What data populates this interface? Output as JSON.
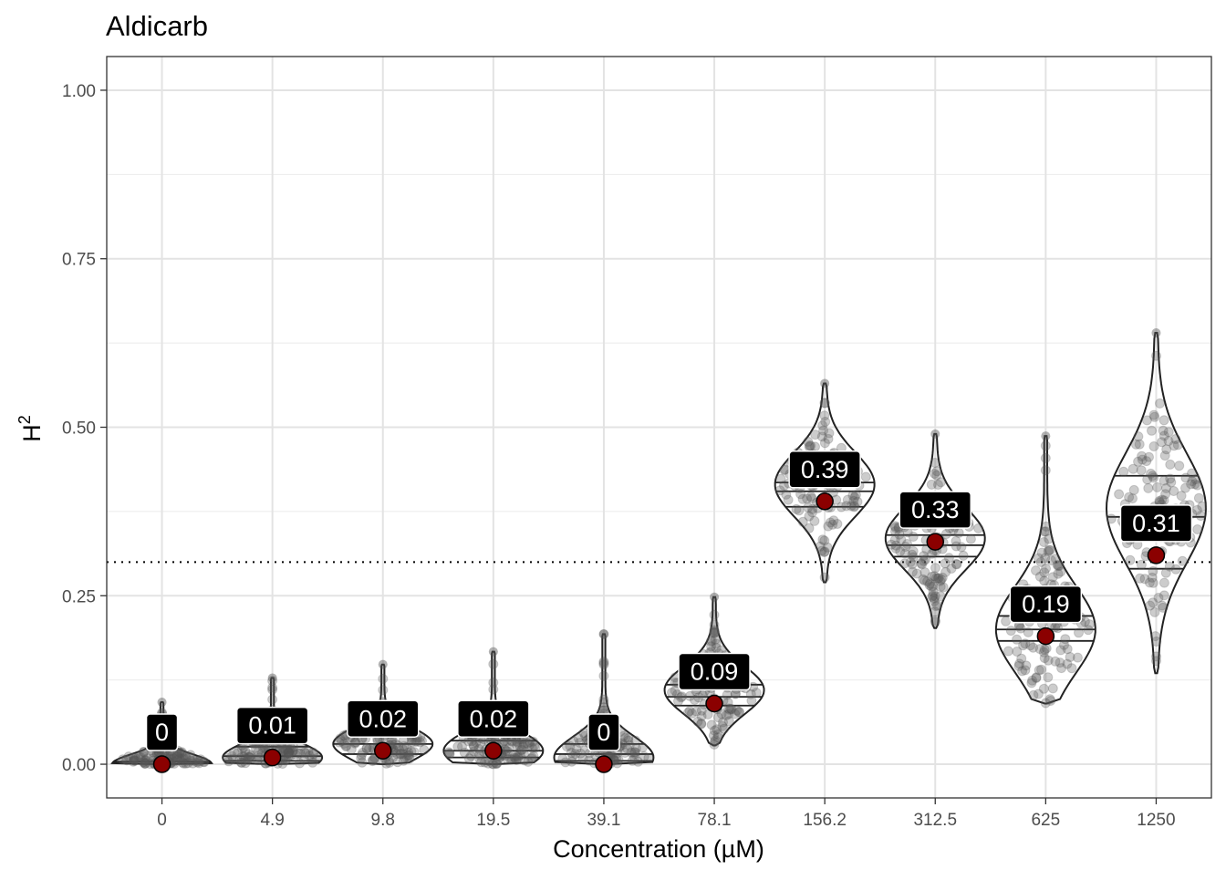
{
  "chart_data": {
    "type": "violin",
    "title": "Aldicarb",
    "xlabel": "Concentration (µM)",
    "ylabel_base": "H",
    "ylabel_sup": "2",
    "categories": [
      "0",
      "4.9",
      "9.8",
      "19.5",
      "39.1",
      "78.1",
      "156.2",
      "312.5",
      "625",
      "1250"
    ],
    "ylim": [
      -0.05,
      1.05
    ],
    "yticks": [
      0.0,
      0.25,
      0.5,
      0.75,
      1.0
    ],
    "ytick_labels": [
      "0.00",
      "0.25",
      "0.50",
      "0.75",
      "1.00"
    ],
    "threshold": 0.3,
    "point_estimates": [
      0.0,
      0.01,
      0.02,
      0.02,
      0.0,
      0.09,
      0.39,
      0.33,
      0.19,
      0.31
    ],
    "estimate_labels": [
      "0",
      "0.01",
      "0.02",
      "0.02",
      "0",
      "0.09",
      "0.39",
      "0.33",
      "0.19",
      "0.31"
    ],
    "violins": [
      {
        "min": 0.0,
        "max": 0.092,
        "q1": 0.0,
        "median": 0.0,
        "q3": 0.004,
        "mode": 0.0
      },
      {
        "min": 0.0,
        "max": 0.128,
        "q1": 0.005,
        "median": 0.012,
        "q3": 0.026,
        "mode": 0.01
      },
      {
        "min": 0.0,
        "max": 0.148,
        "q1": 0.015,
        "median": 0.03,
        "q3": 0.05,
        "mode": 0.03
      },
      {
        "min": 0.0,
        "max": 0.167,
        "q1": 0.01,
        "median": 0.02,
        "q3": 0.035,
        "mode": 0.02
      },
      {
        "min": 0.0,
        "max": 0.193,
        "q1": 0.005,
        "median": 0.015,
        "q3": 0.03,
        "mode": 0.01
      },
      {
        "min": 0.028,
        "max": 0.248,
        "q1": 0.087,
        "median": 0.1,
        "q3": 0.118,
        "mode": 0.11
      },
      {
        "min": 0.27,
        "max": 0.565,
        "q1": 0.382,
        "median": 0.405,
        "q3": 0.418,
        "mode": 0.415
      },
      {
        "min": 0.202,
        "max": 0.49,
        "q1": 0.308,
        "median": 0.325,
        "q3": 0.34,
        "mode": 0.335
      },
      {
        "min": 0.09,
        "max": 0.487,
        "q1": 0.183,
        "median": 0.2,
        "q3": 0.22,
        "mode": 0.2
      },
      {
        "min": 0.135,
        "max": 0.64,
        "q1": 0.29,
        "median": 0.367,
        "q3": 0.428,
        "mode": 0.38
      }
    ]
  }
}
